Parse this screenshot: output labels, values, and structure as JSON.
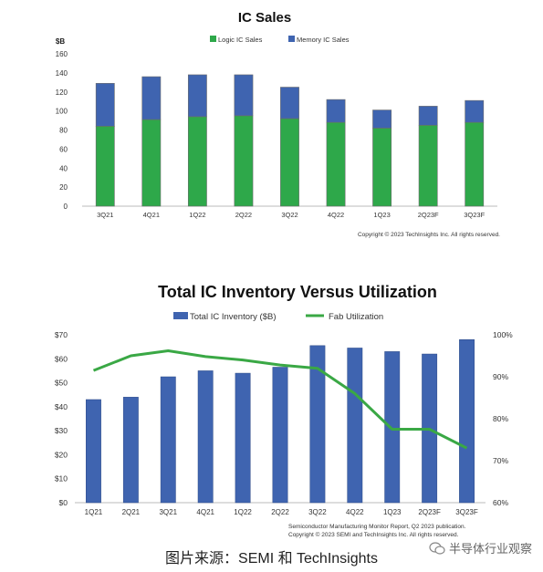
{
  "chart_data": [
    {
      "type": "bar",
      "stacked": true,
      "title": "IC Sales",
      "ylabel": "$B",
      "categories": [
        "3Q21",
        "4Q21",
        "1Q22",
        "2Q22",
        "3Q22",
        "4Q22",
        "1Q23",
        "2Q23F",
        "3Q23F"
      ],
      "series": [
        {
          "name": "Logic IC Sales",
          "values": [
            84,
            91,
            94,
            95,
            92,
            88,
            82,
            85,
            88
          ],
          "color": "#2ea84a"
        },
        {
          "name": "Memory IC Sales",
          "values": [
            45,
            45,
            44,
            43,
            33,
            24,
            19,
            20,
            23
          ],
          "color": "#3f64b0"
        }
      ],
      "ylim": [
        0,
        160
      ],
      "yticks": [
        "0",
        "20",
        "40",
        "60",
        "80",
        "100",
        "120",
        "140",
        "160"
      ],
      "grid": false,
      "legend": "top",
      "copyright": "Copyright © 2023 TechInsights Inc.  All rights reserved."
    },
    {
      "type": "bar+line",
      "title": "Total IC Inventory Versus Utilization",
      "categories": [
        "1Q21",
        "2Q21",
        "3Q21",
        "4Q21",
        "1Q22",
        "2Q22",
        "3Q22",
        "4Q22",
        "1Q23",
        "2Q23F",
        "3Q23F"
      ],
      "series": [
        {
          "name": "Total IC Inventory ($B)",
          "type": "bar",
          "axis": "left",
          "values": [
            43,
            44,
            52.5,
            55,
            54,
            56.5,
            65.5,
            64.5,
            63,
            62,
            68
          ],
          "color": "#3f64b0"
        },
        {
          "name": "Fab Utilization",
          "type": "line",
          "axis": "right",
          "values": [
            91.5,
            95,
            96.2,
            94.8,
            94,
            92.8,
            92,
            86,
            77.5,
            77.5,
            73
          ],
          "color": "#3aa845"
        }
      ],
      "ylim_left": [
        0,
        70
      ],
      "ylim_right": [
        60,
        100
      ],
      "yticks_left": [
        "$0",
        "$10",
        "$20",
        "$30",
        "$40",
        "$50",
        "$60",
        "$70"
      ],
      "yticks_right": [
        "60%",
        "70%",
        "80%",
        "90%",
        "100%"
      ],
      "grid": false,
      "legend": "top",
      "source_line1": "Semiconductor Manufacturing Monitor Report, Q2 2023 publication.",
      "source_line2": "Copyright © 2023 SEMI and TechInsights Inc.  All rights reserved."
    }
  ],
  "caption": "图片来源：SEMI 和 TechInsights",
  "watermark": "半导体行业观察"
}
